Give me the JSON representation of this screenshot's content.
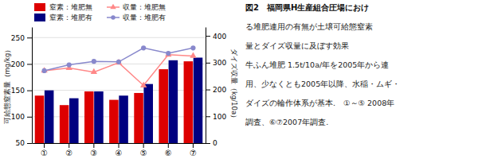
{
  "chart_data": {
    "type": "bar",
    "title": "図2　福岡県H生産組合圧場におけ",
    "annotations": [
      "る堆肥連用の有無が土壌可給態窒素",
      "量とダイズ収量に及ぼす効果",
      "牛ふん堆肥 1.5t/10a/年を2005年から連",
      "用、少なくとも2005年以降、水稲・ムギ・",
      "ダイズの輪作体系が基本.　①～⑤ 2008年",
      "調査、⑥⑦2007年調査."
    ],
    "categories": [
      "①",
      "②",
      "③",
      "④",
      "⑤",
      "⑥",
      "⑦"
    ],
    "series": [
      {
        "name": "窒素：堆肥無",
        "color": "#dd0000",
        "values": [
          140,
          122,
          148,
          132,
          145,
          190,
          205
        ]
      },
      {
        "name": "窒素：堆肥有",
        "color": "#000080",
        "values": [
          150,
          135,
          148,
          140,
          162,
          207,
          212
        ]
      },
      {
        "name": "収量：堆肥無",
        "type": "line",
        "axis": "y2",
        "color": "#ff8888",
        "marker": "triangle",
        "values": [
          270,
          280,
          265,
          300,
          215,
          330,
          325
        ]
      },
      {
        "name": "収量：堆肥有",
        "type": "line",
        "axis": "y2",
        "color": "#8888cc",
        "marker": "circle",
        "values": [
          270,
          292,
          305,
          303,
          355,
          335,
          355
        ]
      }
    ],
    "ylabel": "可給態窒素量（mg/kg）",
    "y2label": "ダイズ収量（kg/10a）",
    "ylim": [
      50,
      270
    ],
    "yticks": [
      50,
      100,
      150,
      200,
      250
    ],
    "y2lim": [
      0,
      433
    ],
    "y2ticks": [
      0,
      100,
      200,
      300,
      400
    ],
    "grid": true,
    "legend": "upper left"
  }
}
